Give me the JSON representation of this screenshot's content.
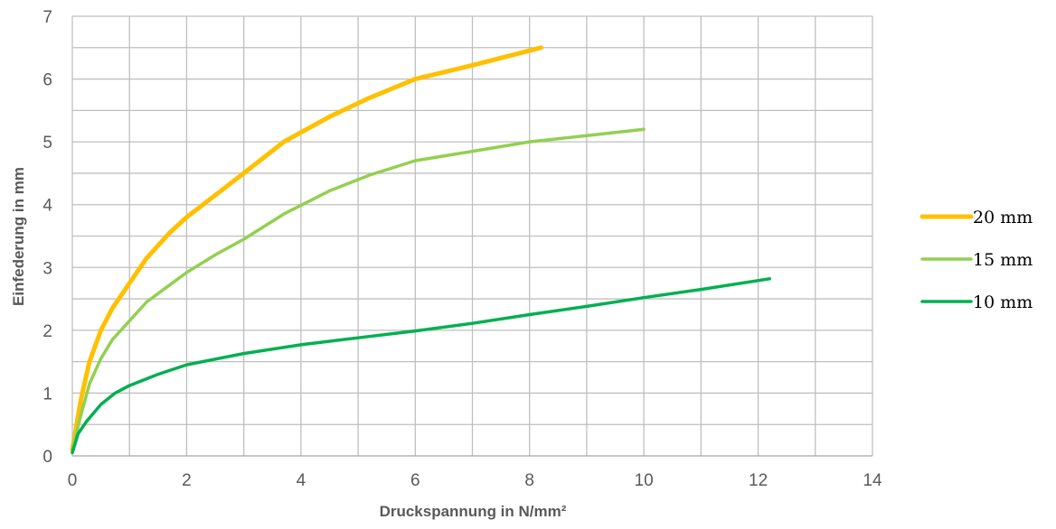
{
  "chart_data": {
    "type": "line",
    "title": "",
    "xlabel": "Druckspannung in N/mm²",
    "ylabel": "Einfederung in mm",
    "xlim": [
      0,
      14
    ],
    "ylim": [
      0,
      7
    ],
    "x_ticks": [
      0,
      2,
      4,
      6,
      8,
      10,
      12,
      14
    ],
    "y_ticks": [
      0,
      1,
      2,
      3,
      4,
      5,
      6,
      7
    ],
    "grid": true,
    "legend_position": "right",
    "series": [
      {
        "name": "20 mm",
        "color": "#FFC000",
        "x": [
          0,
          0.15,
          0.3,
          0.5,
          0.7,
          1.0,
          1.3,
          1.7,
          2.0,
          2.5,
          3.0,
          3.7,
          4.5,
          5.2,
          6.0,
          7.0,
          8.2
        ],
        "y": [
          0.1,
          0.9,
          1.5,
          2.0,
          2.35,
          2.75,
          3.15,
          3.55,
          3.8,
          4.15,
          4.5,
          5.0,
          5.4,
          5.7,
          6.0,
          6.22,
          6.5
        ]
      },
      {
        "name": "15 mm",
        "color": "#92D050",
        "x": [
          0,
          0.15,
          0.3,
          0.5,
          0.7,
          1.0,
          1.3,
          1.7,
          2.0,
          2.5,
          3.0,
          3.7,
          4.5,
          5.2,
          6.0,
          7.0,
          8.0,
          9.0,
          10.0
        ],
        "y": [
          0.1,
          0.65,
          1.15,
          1.55,
          1.85,
          2.15,
          2.45,
          2.72,
          2.92,
          3.2,
          3.45,
          3.85,
          4.22,
          4.47,
          4.7,
          4.85,
          5.0,
          5.1,
          5.2
        ]
      },
      {
        "name": "10 mm",
        "color": "#00B050",
        "x": [
          0,
          0.1,
          0.25,
          0.5,
          0.75,
          1.0,
          1.5,
          2.0,
          3.0,
          4.0,
          5.0,
          6.0,
          7.0,
          8.0,
          9.0,
          10.0,
          11.0,
          12.2
        ],
        "y": [
          0.05,
          0.35,
          0.55,
          0.82,
          1.0,
          1.12,
          1.3,
          1.45,
          1.63,
          1.77,
          1.88,
          1.99,
          2.11,
          2.25,
          2.38,
          2.52,
          2.65,
          2.82
        ]
      }
    ]
  }
}
